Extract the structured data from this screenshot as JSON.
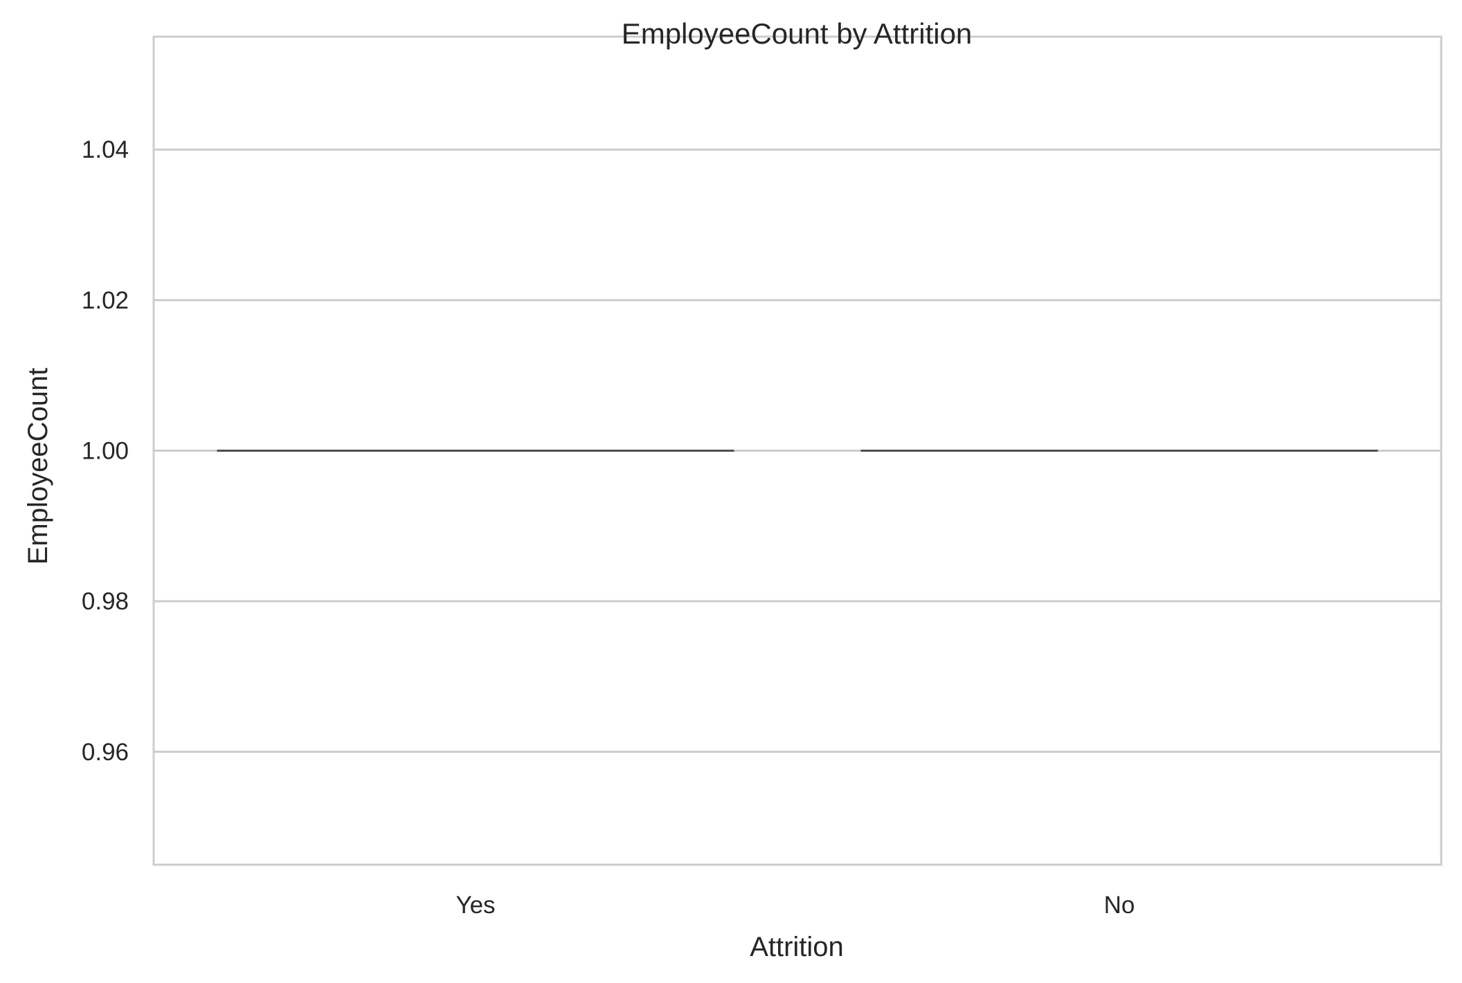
{
  "chart_data": {
    "type": "boxplot",
    "title": "EmployeeCount by Attrition",
    "xlabel": "Attrition",
    "ylabel": "EmployeeCount",
    "categories": [
      "Yes",
      "No"
    ],
    "series": [
      {
        "category": "Yes",
        "min": 1.0,
        "q1": 1.0,
        "median": 1.0,
        "q3": 1.0,
        "max": 1.0
      },
      {
        "category": "No",
        "min": 1.0,
        "q1": 1.0,
        "median": 1.0,
        "q3": 1.0,
        "max": 1.0
      }
    ],
    "ylim": [
      0.945,
      1.055
    ],
    "yticks": [
      0.96,
      0.98,
      1.0,
      1.02,
      1.04
    ],
    "ytick_labels": [
      "0.96",
      "0.98",
      "1.00",
      "1.02",
      "1.04"
    ],
    "grid": true,
    "colors": {
      "grid": "#cccccc",
      "spine": "#cccccc",
      "box_line": "#4d4d4d",
      "text": "#262626"
    }
  }
}
